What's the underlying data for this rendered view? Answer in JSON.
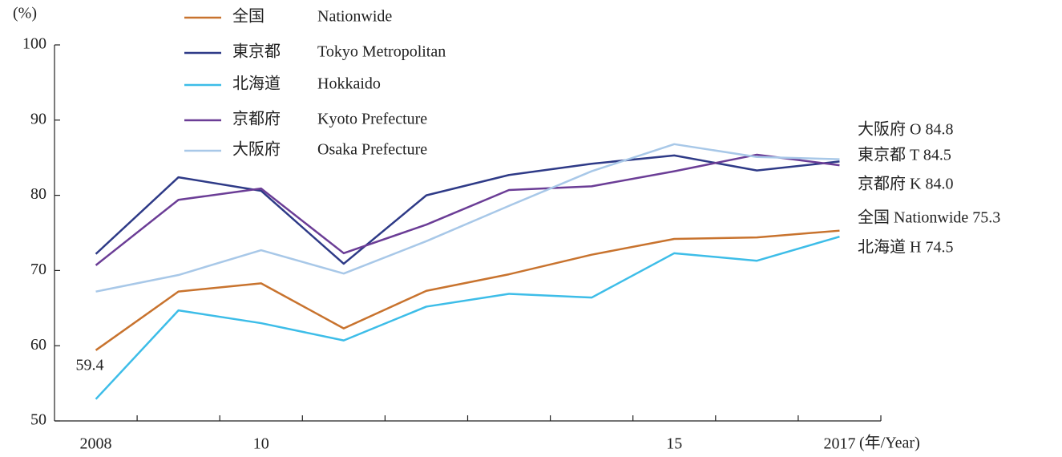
{
  "chart_data": {
    "type": "line",
    "y_label": "(%)",
    "x_label": "(年/Year)",
    "categories": [
      "2008",
      null,
      "10",
      null,
      null,
      null,
      null,
      "15",
      null,
      "2017"
    ],
    "ylim": [
      50,
      100
    ],
    "yticks": [
      50,
      60,
      70,
      80,
      90,
      100
    ],
    "series": [
      {
        "name": "全国",
        "name_en": "Nationwide",
        "color": "#c8732e",
        "values": [
          59.4,
          67.2,
          68.3,
          62.3,
          67.3,
          69.5,
          72.1,
          74.2,
          74.4,
          75.3
        ],
        "start_label": "59.4",
        "end_label": "全国 Nationwide 75.3"
      },
      {
        "name": "東京都",
        "name_en": "Tokyo Metropolitan",
        "color": "#2e3a87",
        "values": [
          72.2,
          82.4,
          80.6,
          70.9,
          80.0,
          82.7,
          84.2,
          85.3,
          83.3,
          84.5
        ],
        "end_label": "東京都 T 84.5"
      },
      {
        "name": "北海道",
        "name_en": "Hokkaido",
        "color": "#3dbde8",
        "values": [
          52.9,
          64.7,
          63.0,
          60.7,
          65.2,
          66.9,
          66.4,
          72.3,
          71.3,
          74.5
        ],
        "end_label": "北海道 H 74.5"
      },
      {
        "name": "京都府",
        "name_en": "Kyoto Prefecture",
        "color": "#6b3d96",
        "values": [
          70.7,
          79.4,
          80.9,
          72.3,
          76.1,
          80.7,
          81.2,
          83.2,
          85.4,
          84.0
        ],
        "end_label": "京都府 K 84.0"
      },
      {
        "name": "大阪府",
        "name_en": "Osaka Prefecture",
        "color": "#a8c8e8",
        "values": [
          67.2,
          69.4,
          72.7,
          69.6,
          73.9,
          78.6,
          83.2,
          86.8,
          85.1,
          84.8
        ],
        "end_label": "大阪府 O 84.8"
      }
    ]
  }
}
